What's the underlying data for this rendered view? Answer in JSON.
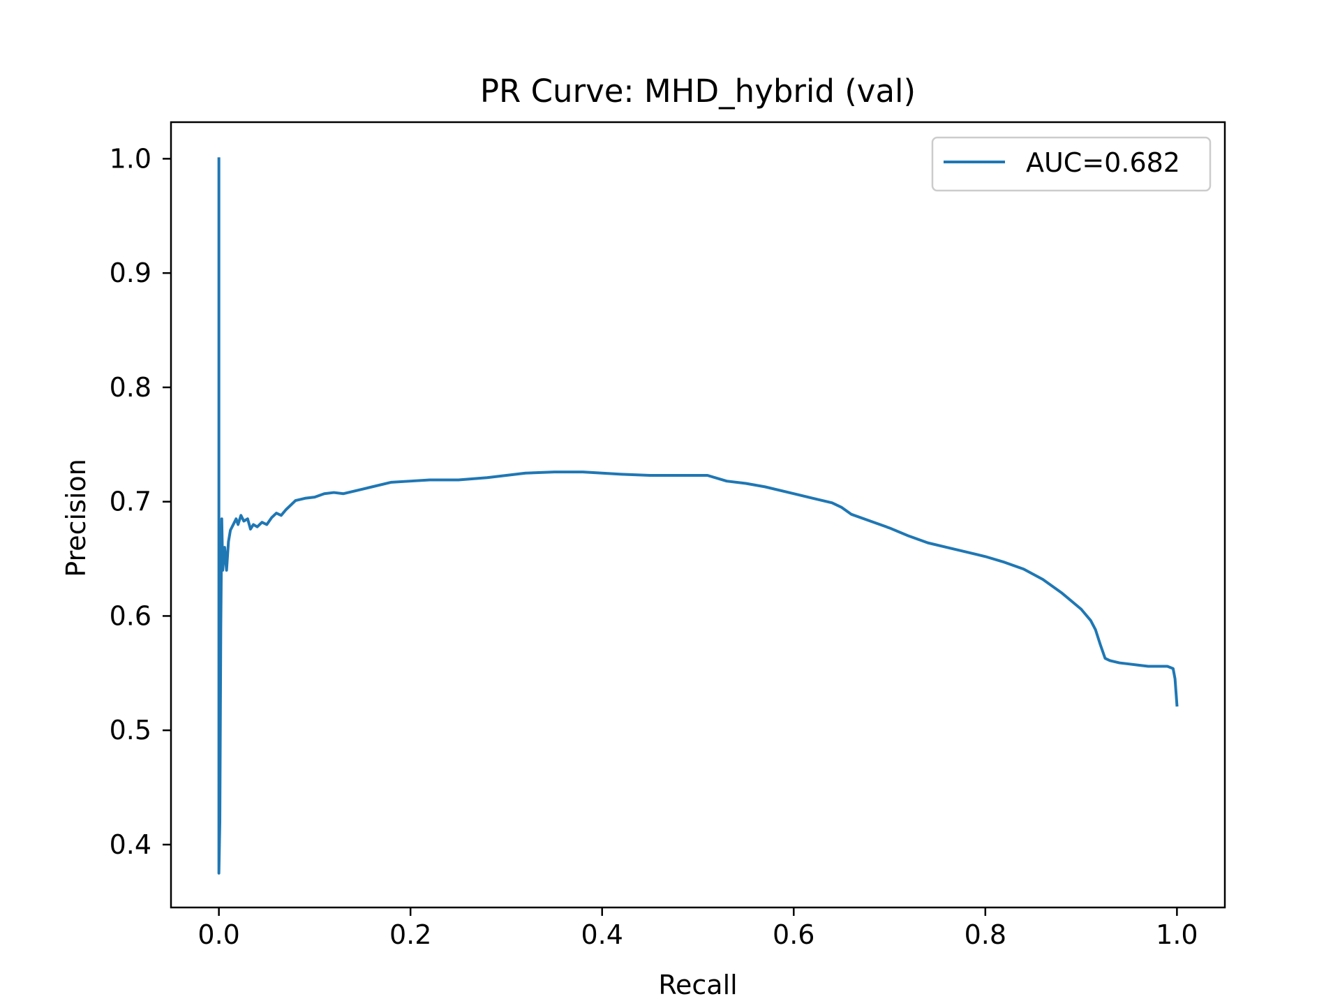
{
  "chart_data": {
    "type": "line",
    "title": "PR Curve: MHD_hybrid (val)",
    "xlabel": "Recall",
    "ylabel": "Precision",
    "xlim": [
      -0.05,
      1.05
    ],
    "ylim": [
      0.345,
      1.032
    ],
    "xticks": [
      0.0,
      0.2,
      0.4,
      0.6,
      0.8,
      1.0
    ],
    "xtick_labels": [
      "0.0",
      "0.2",
      "0.4",
      "0.6",
      "0.8",
      "1.0"
    ],
    "yticks": [
      0.4,
      0.5,
      0.6,
      0.7,
      0.8,
      0.9,
      1.0
    ],
    "ytick_labels": [
      "0.4",
      "0.5",
      "0.6",
      "0.7",
      "0.8",
      "0.9",
      "1.0"
    ],
    "grid": false,
    "legend_position": "upper right",
    "series": [
      {
        "name": "AUC=0.682",
        "color": "#1f77b4",
        "points": [
          [
            0.0,
            1.0
          ],
          [
            0.0,
            0.92
          ],
          [
            0.0,
            0.8
          ],
          [
            0.0,
            0.66
          ],
          [
            0.0,
            0.55
          ],
          [
            0.0,
            0.45
          ],
          [
            0.0,
            0.38
          ],
          [
            0.0,
            0.375
          ],
          [
            0.001,
            0.42
          ],
          [
            0.002,
            0.59
          ],
          [
            0.003,
            0.685
          ],
          [
            0.004,
            0.64
          ],
          [
            0.006,
            0.66
          ],
          [
            0.008,
            0.64
          ],
          [
            0.01,
            0.665
          ],
          [
            0.012,
            0.675
          ],
          [
            0.015,
            0.68
          ],
          [
            0.018,
            0.685
          ],
          [
            0.02,
            0.68
          ],
          [
            0.023,
            0.688
          ],
          [
            0.026,
            0.683
          ],
          [
            0.03,
            0.685
          ],
          [
            0.033,
            0.676
          ],
          [
            0.036,
            0.68
          ],
          [
            0.04,
            0.678
          ],
          [
            0.045,
            0.682
          ],
          [
            0.05,
            0.68
          ],
          [
            0.055,
            0.686
          ],
          [
            0.06,
            0.69
          ],
          [
            0.065,
            0.688
          ],
          [
            0.07,
            0.693
          ],
          [
            0.08,
            0.701
          ],
          [
            0.09,
            0.703
          ],
          [
            0.1,
            0.704
          ],
          [
            0.11,
            0.707
          ],
          [
            0.12,
            0.708
          ],
          [
            0.13,
            0.707
          ],
          [
            0.14,
            0.709
          ],
          [
            0.15,
            0.711
          ],
          [
            0.16,
            0.713
          ],
          [
            0.18,
            0.717
          ],
          [
            0.2,
            0.718
          ],
          [
            0.22,
            0.719
          ],
          [
            0.25,
            0.719
          ],
          [
            0.28,
            0.721
          ],
          [
            0.3,
            0.723
          ],
          [
            0.32,
            0.725
          ],
          [
            0.35,
            0.726
          ],
          [
            0.38,
            0.726
          ],
          [
            0.4,
            0.725
          ],
          [
            0.42,
            0.724
          ],
          [
            0.45,
            0.723
          ],
          [
            0.48,
            0.723
          ],
          [
            0.5,
            0.723
          ],
          [
            0.51,
            0.723
          ],
          [
            0.53,
            0.718
          ],
          [
            0.55,
            0.716
          ],
          [
            0.57,
            0.713
          ],
          [
            0.6,
            0.707
          ],
          [
            0.62,
            0.703
          ],
          [
            0.64,
            0.699
          ],
          [
            0.65,
            0.695
          ],
          [
            0.66,
            0.689
          ],
          [
            0.68,
            0.683
          ],
          [
            0.7,
            0.677
          ],
          [
            0.72,
            0.67
          ],
          [
            0.74,
            0.664
          ],
          [
            0.76,
            0.66
          ],
          [
            0.78,
            0.656
          ],
          [
            0.8,
            0.652
          ],
          [
            0.82,
            0.647
          ],
          [
            0.84,
            0.641
          ],
          [
            0.86,
            0.632
          ],
          [
            0.88,
            0.62
          ],
          [
            0.9,
            0.606
          ],
          [
            0.91,
            0.596
          ],
          [
            0.915,
            0.588
          ],
          [
            0.92,
            0.575
          ],
          [
            0.925,
            0.563
          ],
          [
            0.93,
            0.561
          ],
          [
            0.94,
            0.559
          ],
          [
            0.95,
            0.558
          ],
          [
            0.96,
            0.557
          ],
          [
            0.97,
            0.556
          ],
          [
            0.98,
            0.556
          ],
          [
            0.99,
            0.556
          ],
          [
            0.996,
            0.554
          ],
          [
            0.998,
            0.545
          ],
          [
            1.0,
            0.522
          ]
        ]
      }
    ]
  }
}
